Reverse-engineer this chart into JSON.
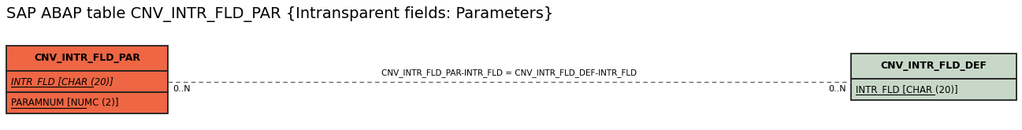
{
  "title": "SAP ABAP table CNV_INTR_FLD_PAR {Intransparent fields: Parameters}",
  "title_fontsize": 14,
  "left_table": {
    "name": "CNV_INTR_FLD_PAR",
    "header_color": "#ee6644",
    "row_color": "#ee6644",
    "border_color": "#222222",
    "fields": [
      {
        "text": "INTR_FLD [CHAR (20)]",
        "italic": true,
        "underline": true
      },
      {
        "text": "PARAMNUM [NUMC (2)]",
        "italic": false,
        "underline": true
      }
    ]
  },
  "right_table": {
    "name": "CNV_INTR_FLD_DEF",
    "header_color": "#c8d8c8",
    "row_color": "#c8d8c8",
    "border_color": "#222222",
    "fields": [
      {
        "text": "INTR_FLD [CHAR (20)]",
        "italic": false,
        "underline": true
      }
    ]
  },
  "relation_label": "CNV_INTR_FLD_PAR-INTR_FLD = CNV_INTR_FLD_DEF-INTR_FLD",
  "left_cardinality": "0..N",
  "right_cardinality": "0..N",
  "bg_color": "#ffffff",
  "text_color": "#000000"
}
